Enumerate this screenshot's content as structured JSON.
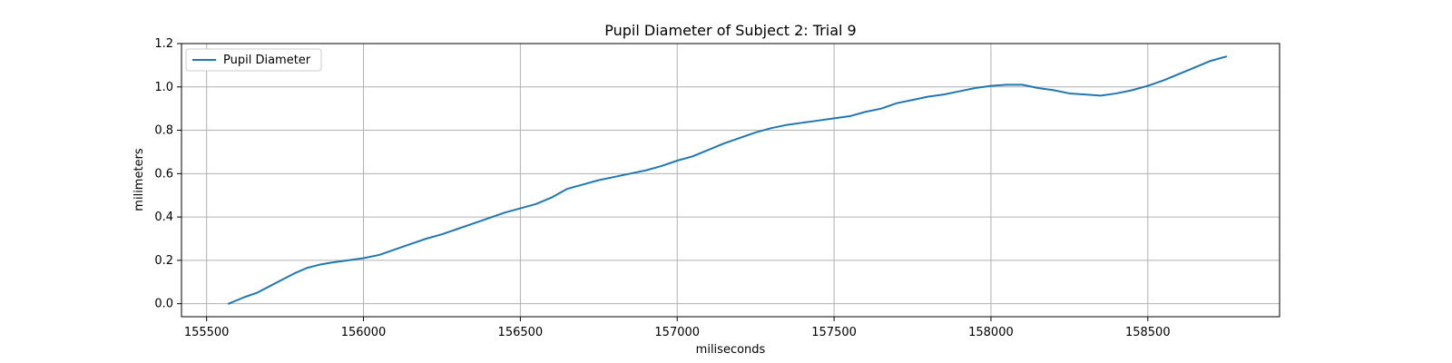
{
  "chart_data": {
    "type": "line",
    "title": "Pupil Diameter of Subject 2: Trial 9",
    "xlabel": "miliseconds",
    "ylabel": "milimeters",
    "xlim": [
      155420,
      158920
    ],
    "ylim": [
      -0.06,
      1.2
    ],
    "x_ticks": [
      155500,
      156000,
      156500,
      157000,
      157500,
      158000,
      158500
    ],
    "y_ticks": [
      0.0,
      0.2,
      0.4,
      0.6,
      0.8,
      1.0,
      1.2
    ],
    "x_tick_labels": [
      "155500",
      "156000",
      "156500",
      "157000",
      "157500",
      "158000",
      "158500"
    ],
    "y_tick_labels": [
      "0.0",
      "0.2",
      "0.4",
      "0.6",
      "0.8",
      "1.0",
      "1.2"
    ],
    "grid": true,
    "legend": {
      "placement": "top-left",
      "entries": [
        "Pupil Diameter"
      ]
    },
    "series": [
      {
        "name": "Pupil Diameter",
        "color": "#1f77b4",
        "x": [
          155570,
          155620,
          155660,
          155700,
          155740,
          155780,
          155820,
          155860,
          155900,
          155950,
          156000,
          156050,
          156100,
          156150,
          156200,
          156250,
          156300,
          156350,
          156400,
          156450,
          156500,
          156550,
          156600,
          156650,
          156700,
          156750,
          156800,
          156850,
          156900,
          156950,
          157000,
          157050,
          157100,
          157150,
          157200,
          157250,
          157300,
          157350,
          157400,
          157450,
          157500,
          157550,
          157600,
          157650,
          157700,
          157750,
          157800,
          157850,
          157900,
          157950,
          158000,
          158050,
          158100,
          158150,
          158200,
          158250,
          158300,
          158350,
          158400,
          158450,
          158500,
          158550,
          158600,
          158650,
          158700,
          158750
        ],
        "y": [
          0.0,
          0.03,
          0.05,
          0.08,
          0.11,
          0.14,
          0.165,
          0.18,
          0.19,
          0.2,
          0.21,
          0.225,
          0.25,
          0.275,
          0.3,
          0.32,
          0.345,
          0.37,
          0.395,
          0.42,
          0.44,
          0.46,
          0.49,
          0.53,
          0.55,
          0.57,
          0.585,
          0.6,
          0.615,
          0.635,
          0.66,
          0.68,
          0.71,
          0.74,
          0.765,
          0.79,
          0.81,
          0.825,
          0.835,
          0.845,
          0.855,
          0.865,
          0.885,
          0.9,
          0.925,
          0.94,
          0.955,
          0.965,
          0.98,
          0.995,
          1.005,
          1.01,
          1.01,
          0.995,
          0.985,
          0.97,
          0.965,
          0.96,
          0.97,
          0.985,
          1.005,
          1.03,
          1.06,
          1.09,
          1.12,
          1.14
        ]
      }
    ]
  }
}
